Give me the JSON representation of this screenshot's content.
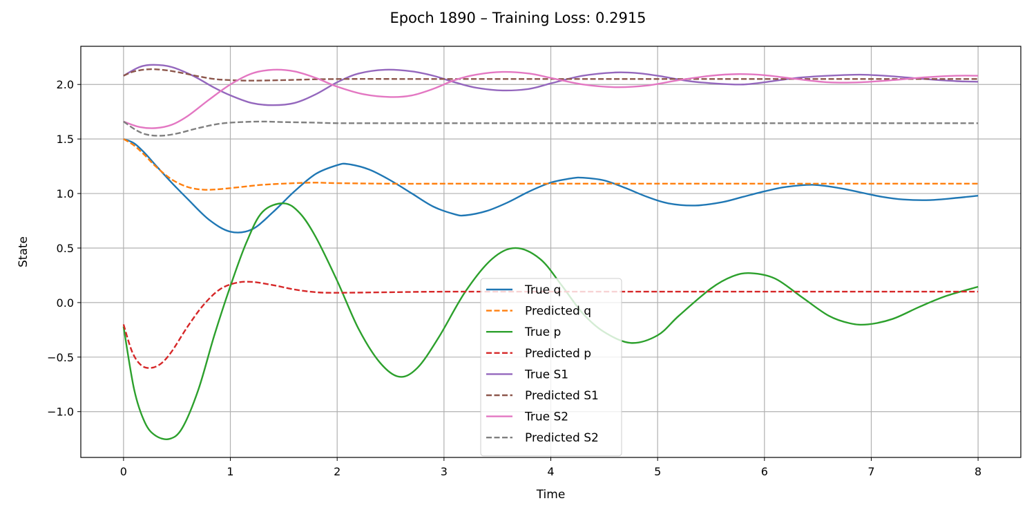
{
  "chart_data": {
    "type": "line",
    "title": "Epoch 1890 – Training Loss: 0.2915",
    "xlabel": "Time",
    "ylabel": "State",
    "xlim": [
      -0.4,
      8.4
    ],
    "ylim": [
      -1.42,
      2.35
    ],
    "xticks": [
      0,
      1,
      2,
      3,
      4,
      5,
      6,
      7,
      8
    ],
    "xtick_labels": [
      "0",
      "1",
      "2",
      "3",
      "4",
      "5",
      "6",
      "7",
      "8"
    ],
    "yticks": [
      -1.0,
      -0.5,
      0.0,
      0.5,
      1.0,
      1.5,
      2.0
    ],
    "ytick_labels": [
      "−1.0",
      "−0.5",
      "0.0",
      "0.5",
      "1.0",
      "1.5",
      "2.0"
    ],
    "grid": true,
    "legend_position": "lower-center",
    "series": [
      {
        "name": "True q",
        "color": "#1f77b4",
        "dash": "solid",
        "x": [
          0,
          0.1,
          0.2,
          0.3,
          0.45,
          0.6,
          0.8,
          1.0,
          1.2,
          1.4,
          1.6,
          1.8,
          2.0,
          2.1,
          2.3,
          2.5,
          2.7,
          2.9,
          3.1,
          3.2,
          3.4,
          3.6,
          3.8,
          4.0,
          4.2,
          4.3,
          4.5,
          4.7,
          4.9,
          5.1,
          5.35,
          5.6,
          5.8,
          6.0,
          6.2,
          6.45,
          6.7,
          6.9,
          7.1,
          7.3,
          7.55,
          7.8,
          8.0
        ],
        "y": [
          1.5,
          1.46,
          1.37,
          1.26,
          1.1,
          0.95,
          0.76,
          0.65,
          0.67,
          0.83,
          1.02,
          1.18,
          1.26,
          1.27,
          1.22,
          1.12,
          1.0,
          0.88,
          0.81,
          0.8,
          0.84,
          0.92,
          1.02,
          1.1,
          1.14,
          1.145,
          1.12,
          1.05,
          0.97,
          0.91,
          0.89,
          0.92,
          0.97,
          1.02,
          1.06,
          1.08,
          1.05,
          1.01,
          0.97,
          0.945,
          0.94,
          0.96,
          0.98
        ]
      },
      {
        "name": "Predicted q",
        "color": "#ff7f0e",
        "dash": "dashed",
        "x": [
          0,
          0.1,
          0.2,
          0.3,
          0.45,
          0.6,
          0.75,
          0.9,
          1.1,
          1.3,
          1.6,
          1.8,
          2.0,
          2.5,
          3.0,
          4.0,
          5.0,
          6.0,
          7.0,
          8.0
        ],
        "y": [
          1.5,
          1.44,
          1.35,
          1.25,
          1.13,
          1.06,
          1.035,
          1.04,
          1.06,
          1.08,
          1.095,
          1.1,
          1.095,
          1.09,
          1.09,
          1.09,
          1.09,
          1.09,
          1.09,
          1.09
        ]
      },
      {
        "name": "True p",
        "color": "#2ca02c",
        "dash": "solid",
        "x": [
          0,
          0.1,
          0.2,
          0.3,
          0.43,
          0.55,
          0.7,
          0.85,
          1.0,
          1.15,
          1.3,
          1.5,
          1.65,
          1.8,
          2.0,
          2.2,
          2.4,
          2.58,
          2.75,
          2.95,
          3.2,
          3.45,
          3.67,
          3.9,
          4.1,
          4.3,
          4.5,
          4.75,
          5.0,
          5.2,
          5.5,
          5.7,
          5.87,
          6.1,
          6.35,
          6.6,
          6.8,
          6.97,
          7.2,
          7.45,
          7.7,
          8.0
        ],
        "y": [
          -0.22,
          -0.8,
          -1.1,
          -1.22,
          -1.25,
          -1.15,
          -0.8,
          -0.3,
          0.15,
          0.55,
          0.83,
          0.91,
          0.82,
          0.6,
          0.2,
          -0.24,
          -0.55,
          -0.68,
          -0.6,
          -0.32,
          0.1,
          0.4,
          0.5,
          0.4,
          0.16,
          -0.1,
          -0.27,
          -0.37,
          -0.3,
          -0.12,
          0.13,
          0.24,
          0.27,
          0.22,
          0.05,
          -0.12,
          -0.19,
          -0.2,
          -0.15,
          -0.04,
          0.06,
          0.145
        ]
      },
      {
        "name": "Predicted p",
        "color": "#d62728",
        "dash": "dashed",
        "x": [
          0,
          0.08,
          0.16,
          0.25,
          0.35,
          0.45,
          0.6,
          0.75,
          0.9,
          1.05,
          1.2,
          1.4,
          1.6,
          1.8,
          2.0,
          2.5,
          3.0,
          4.0,
          5.0,
          6.0,
          7.0,
          8.0
        ],
        "y": [
          -0.2,
          -0.45,
          -0.57,
          -0.6,
          -0.56,
          -0.45,
          -0.22,
          -0.02,
          0.12,
          0.18,
          0.19,
          0.16,
          0.12,
          0.095,
          0.09,
          0.095,
          0.1,
          0.1,
          0.1,
          0.1,
          0.1,
          0.1
        ]
      },
      {
        "name": "True S1",
        "color": "#9467bd",
        "dash": "solid",
        "x": [
          0,
          0.15,
          0.28,
          0.45,
          0.65,
          0.85,
          1.0,
          1.2,
          1.4,
          1.6,
          1.8,
          2.0,
          2.2,
          2.45,
          2.7,
          2.9,
          3.1,
          3.3,
          3.55,
          3.8,
          4.0,
          4.3,
          4.6,
          4.8,
          5.0,
          5.3,
          5.6,
          5.8,
          6.0,
          6.3,
          6.6,
          6.9,
          7.2,
          7.5,
          7.8,
          8.0
        ],
        "y": [
          2.08,
          2.16,
          2.18,
          2.16,
          2.08,
          1.97,
          1.9,
          1.83,
          1.81,
          1.83,
          1.91,
          2.02,
          2.1,
          2.135,
          2.12,
          2.08,
          2.02,
          1.97,
          1.945,
          1.96,
          2.01,
          2.08,
          2.11,
          2.105,
          2.08,
          2.03,
          2.005,
          2.0,
          2.02,
          2.06,
          2.08,
          2.09,
          2.075,
          2.05,
          2.03,
          2.025
        ]
      },
      {
        "name": "Predicted S1",
        "color": "#8c564b",
        "dash": "dashed",
        "x": [
          0,
          0.1,
          0.25,
          0.4,
          0.55,
          0.7,
          0.85,
          1.0,
          1.2,
          1.5,
          2.0,
          3.0,
          4.0,
          5.0,
          6.0,
          7.0,
          8.0
        ],
        "y": [
          2.08,
          2.12,
          2.14,
          2.13,
          2.105,
          2.075,
          2.05,
          2.04,
          2.035,
          2.04,
          2.05,
          2.05,
          2.05,
          2.05,
          2.05,
          2.05,
          2.05
        ]
      },
      {
        "name": "True S2",
        "color": "#e377c2",
        "dash": "solid",
        "x": [
          0,
          0.15,
          0.3,
          0.45,
          0.6,
          0.8,
          1.0,
          1.2,
          1.4,
          1.6,
          1.8,
          2.0,
          2.25,
          2.5,
          2.7,
          2.9,
          3.1,
          3.3,
          3.55,
          3.8,
          4.0,
          4.3,
          4.6,
          4.9,
          5.2,
          5.5,
          5.75,
          6.0,
          6.3,
          6.6,
          6.9,
          7.2,
          7.5,
          7.8,
          8.0
        ],
        "y": [
          1.66,
          1.61,
          1.6,
          1.63,
          1.71,
          1.86,
          2.0,
          2.1,
          2.135,
          2.12,
          2.06,
          1.98,
          1.91,
          1.885,
          1.9,
          1.96,
          2.04,
          2.09,
          2.115,
          2.1,
          2.06,
          2.0,
          1.975,
          1.99,
          2.04,
          2.08,
          2.095,
          2.085,
          2.05,
          2.02,
          2.02,
          2.04,
          2.065,
          2.08,
          2.08
        ]
      },
      {
        "name": "Predicted S2",
        "color": "#7f7f7f",
        "dash": "dashed",
        "x": [
          0,
          0.12,
          0.22,
          0.35,
          0.5,
          0.7,
          0.9,
          1.1,
          1.3,
          1.5,
          1.8,
          2.0,
          2.5,
          3.0,
          4.0,
          5.0,
          6.0,
          7.0,
          8.0
        ],
        "y": [
          1.66,
          1.58,
          1.54,
          1.53,
          1.55,
          1.6,
          1.64,
          1.655,
          1.66,
          1.655,
          1.65,
          1.645,
          1.645,
          1.645,
          1.645,
          1.645,
          1.645,
          1.645,
          1.645
        ]
      }
    ]
  }
}
